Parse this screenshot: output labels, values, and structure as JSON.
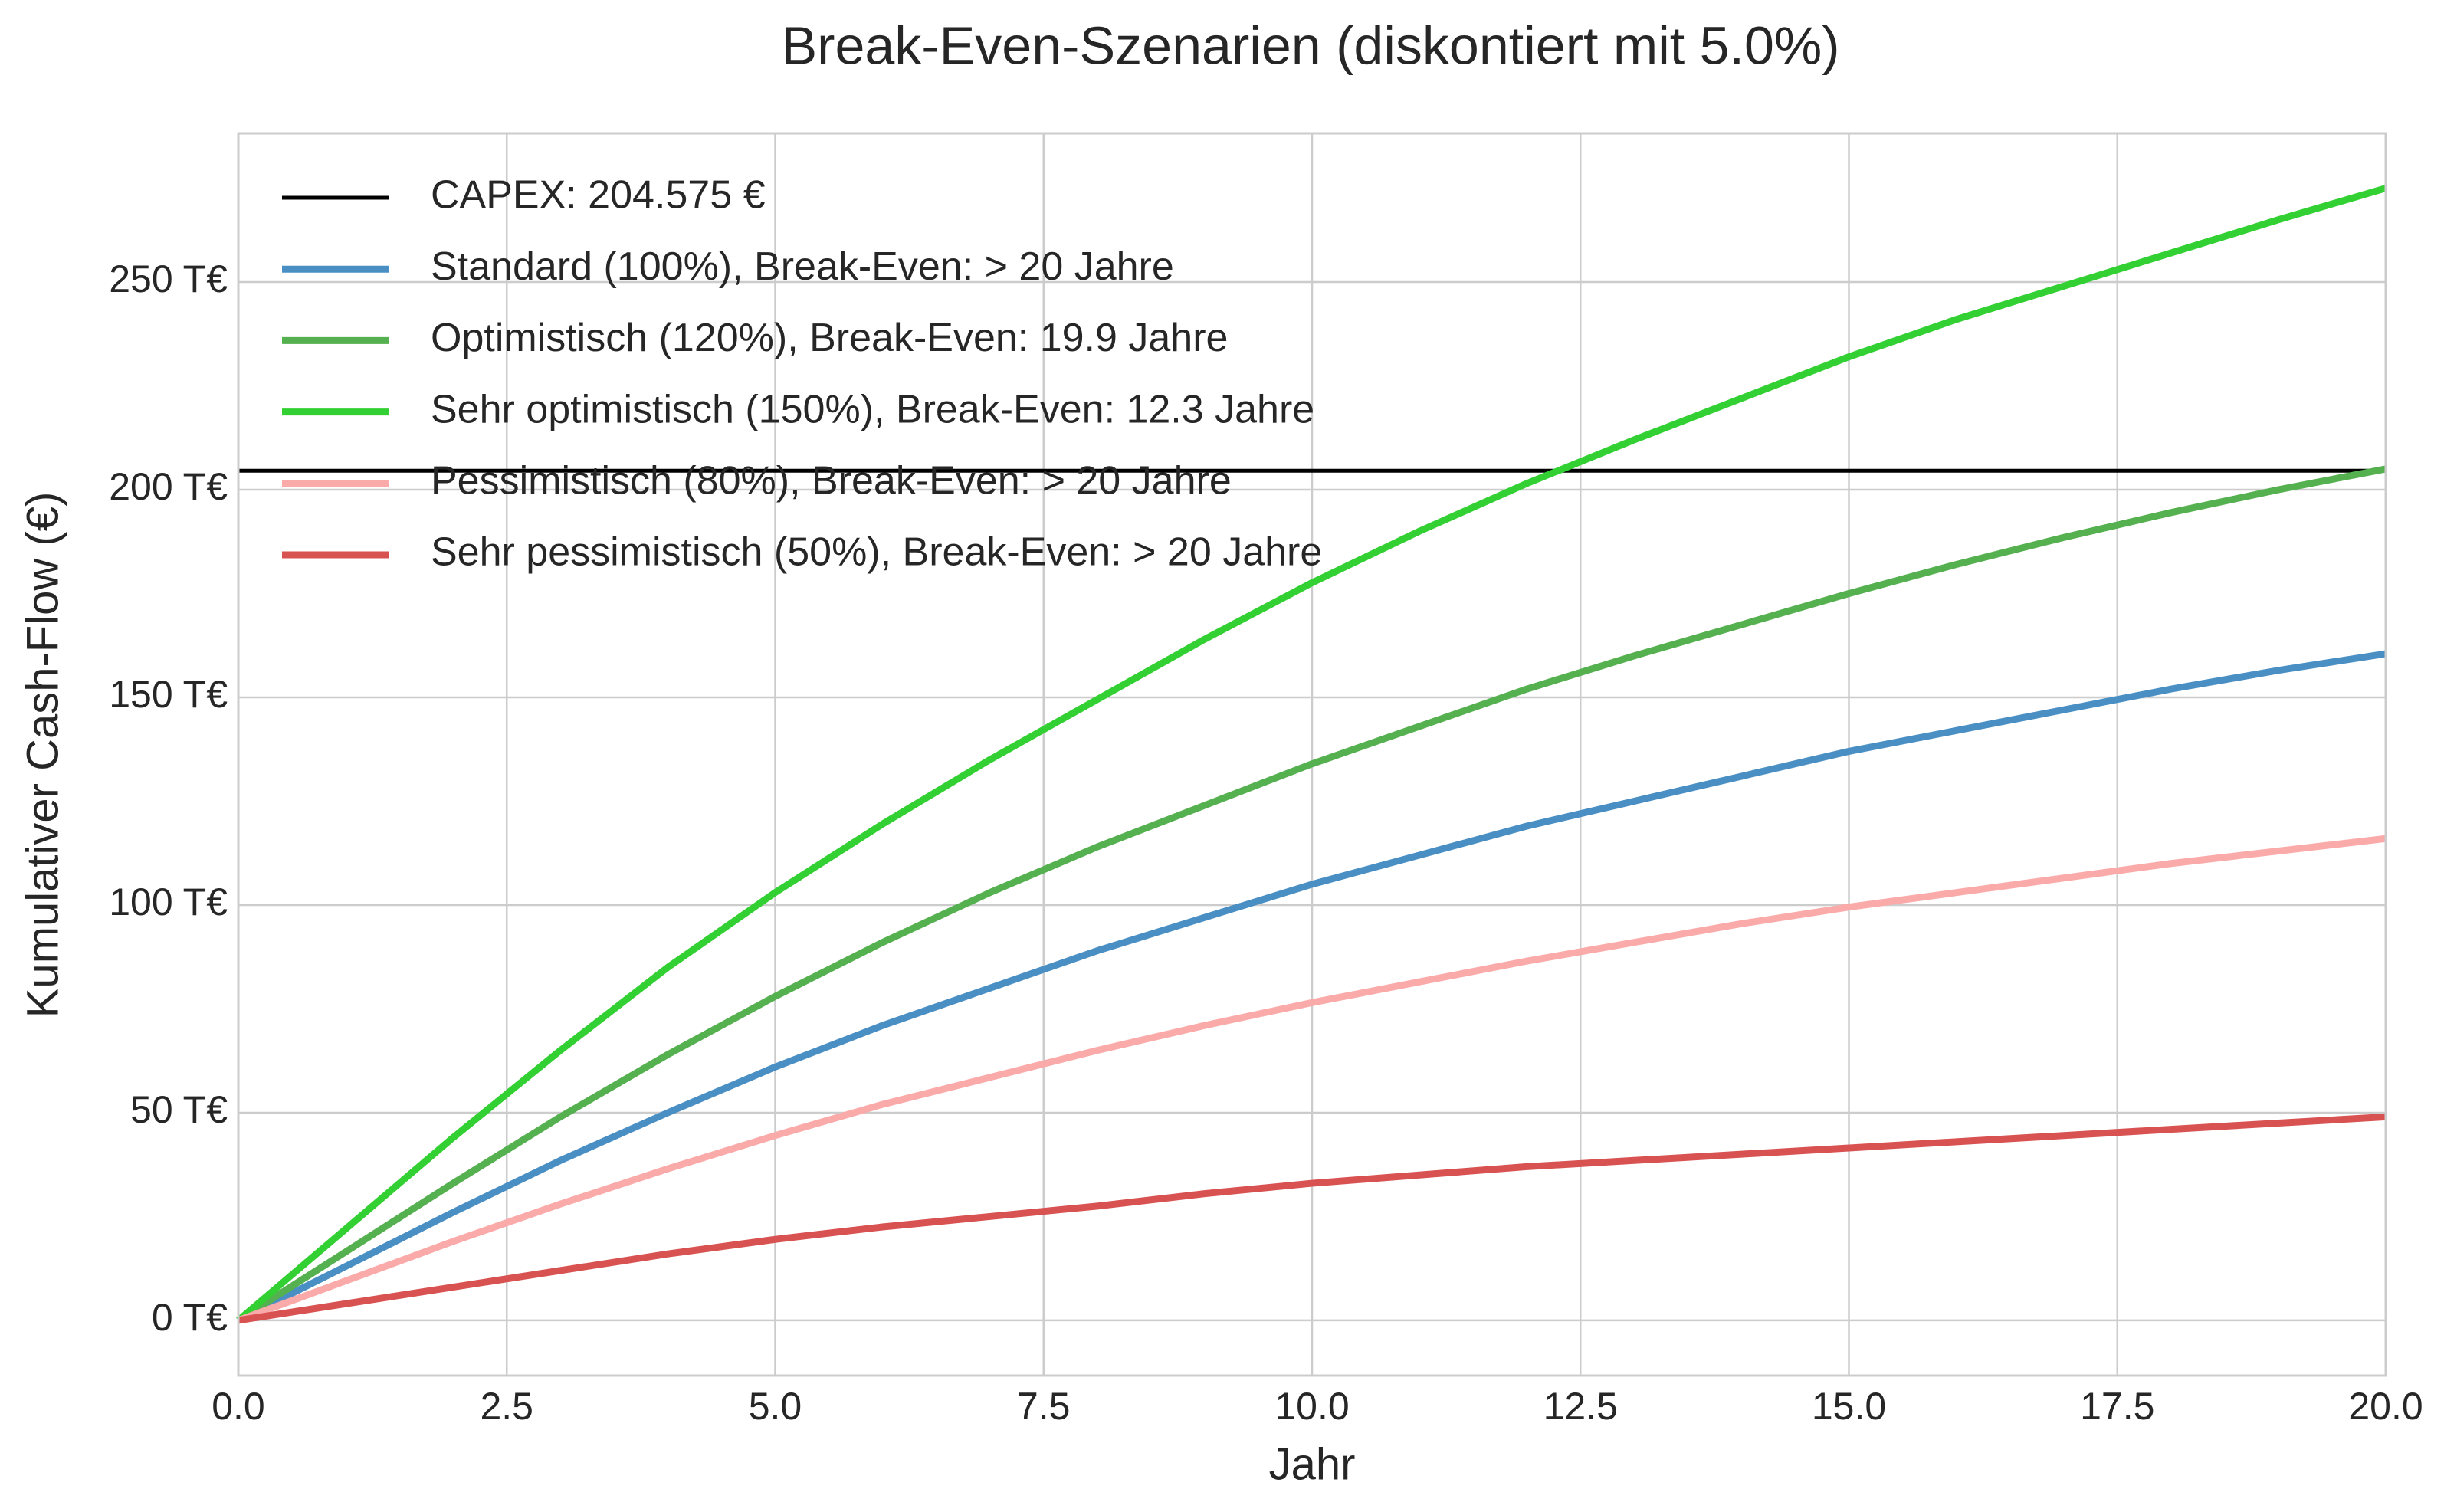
{
  "chart_data": {
    "type": "line",
    "title": "Break-Even-Szenarien (diskontiert mit 5.0%)",
    "x_label": "Jahr",
    "y_label": "Kumulativer Cash-Flow (€)",
    "x": [
      0,
      1,
      2,
      3,
      4,
      5,
      6,
      7,
      8,
      9,
      10,
      11,
      12,
      13,
      14,
      15,
      16,
      17,
      18,
      19,
      20
    ],
    "capex": {
      "name": "CAPEX: 204.575 €",
      "value": 204.575,
      "color": "#000000"
    },
    "series": [
      {
        "name": "Standard (100%), Break-Even: > 20 Jahre",
        "color": "#4a8fc4",
        "values": [
          0,
          13,
          26,
          38.5,
          50,
          61,
          71,
          80,
          89,
          97,
          105,
          112,
          119,
          125,
          131,
          137,
          142,
          147,
          152,
          156.5,
          160.5
        ]
      },
      {
        "name": "Optimistisch (120%), Break-Even: 19.9 Jahre",
        "color": "#55b04f",
        "values": [
          0,
          16.5,
          33,
          49,
          64,
          78,
          91,
          103,
          114,
          124,
          134,
          143,
          152,
          160,
          167.5,
          175,
          182,
          188.5,
          194.5,
          200,
          205
        ]
      },
      {
        "name": "Sehr optimistisch (150%), Break-Even: 12.3 Jahre",
        "color": "#33d033",
        "values": [
          0,
          22,
          44,
          65,
          85,
          103,
          119.5,
          135,
          149.5,
          164,
          177.6,
          190,
          201.5,
          212,
          222,
          232,
          241,
          249,
          257,
          265,
          272.6
        ]
      },
      {
        "name": "Pessimistisch (80%), Break-Even: > 20 Jahre",
        "color": "#fbaaaa",
        "values": [
          0,
          9.5,
          19,
          28,
          36.5,
          44.5,
          52,
          58.5,
          65,
          71,
          76.5,
          81.5,
          86.5,
          91,
          95.5,
          99.5,
          103,
          106.5,
          110,
          113,
          116
        ]
      },
      {
        "name": "Sehr pessimistisch (50%), Break-Even: > 20 Jahre",
        "color": "#d95252",
        "values": [
          0,
          4,
          8,
          12,
          16,
          19.5,
          22.5,
          25,
          27.5,
          30.5,
          33,
          35,
          37,
          38.5,
          40,
          41.5,
          43,
          44.5,
          46,
          47.5,
          49
        ]
      }
    ],
    "xlim": [
      0,
      20
    ],
    "xticks": [
      {
        "value": 0,
        "label": "0.0"
      },
      {
        "value": 2.5,
        "label": "2.5"
      },
      {
        "value": 5,
        "label": "5.0"
      },
      {
        "value": 7.5,
        "label": "7.5"
      },
      {
        "value": 10,
        "label": "10.0"
      },
      {
        "value": 12.5,
        "label": "12.5"
      },
      {
        "value": 15,
        "label": "15.0"
      },
      {
        "value": 17.5,
        "label": "17.5"
      },
      {
        "value": 20,
        "label": "20.0"
      }
    ],
    "ylim": [
      -13.3,
      285.8
    ],
    "yticks": [
      {
        "value": 0,
        "label": "0 T€"
      },
      {
        "value": 50,
        "label": "50 T€"
      },
      {
        "value": 100,
        "label": "100 T€"
      },
      {
        "value": 150,
        "label": "150 T€"
      },
      {
        "value": 200,
        "label": "200 T€"
      },
      {
        "value": 250,
        "label": "250 T€"
      }
    ],
    "grid": true,
    "legend": "upper left"
  }
}
